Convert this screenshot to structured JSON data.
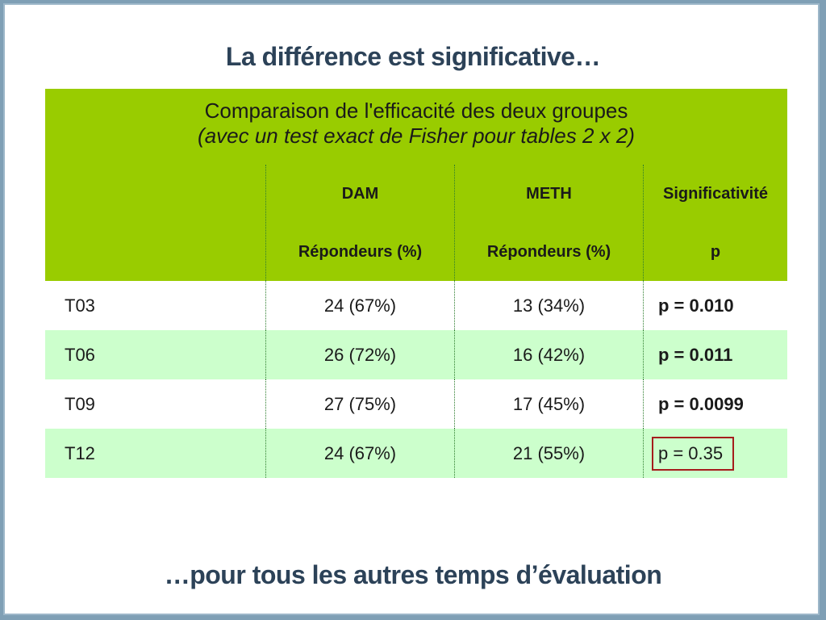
{
  "slide": {
    "title": "La différence est significative…",
    "footer": "…pour tous les autres temps d’évaluation"
  },
  "table": {
    "caption_line1": "Comparaison de l'efficacité des deux groupes",
    "caption_line2": "(avec un test exact de Fisher pour tables 2 x 2)",
    "headers": [
      {
        "top": "",
        "bottom": ""
      },
      {
        "top": "DAM",
        "bottom": "Répondeurs (%)"
      },
      {
        "top": "METH",
        "bottom": "Répondeurs (%)"
      },
      {
        "top": "Significativité",
        "bottom": "p"
      }
    ],
    "rows": [
      {
        "time": "T03",
        "dam": "24 (67%)",
        "meth": "13 (34%)",
        "p": "p = 0.010"
      },
      {
        "time": "T06",
        "dam": "26 (72%)",
        "meth": "16 (42%)",
        "p": "p = 0.011"
      },
      {
        "time": "T09",
        "dam": "27 (75%)",
        "meth": "17 (45%)",
        "p": "p = 0.0099"
      },
      {
        "time": "T12",
        "dam": "24 (67%)",
        "meth": "21 (55%)",
        "p": "p = 0.35"
      }
    ]
  },
  "colors": {
    "header_green": "#99cc00",
    "row_alt_green": "#ccffcc",
    "title_navy": "#2c4258",
    "highlight_box": "#a51d1d"
  }
}
